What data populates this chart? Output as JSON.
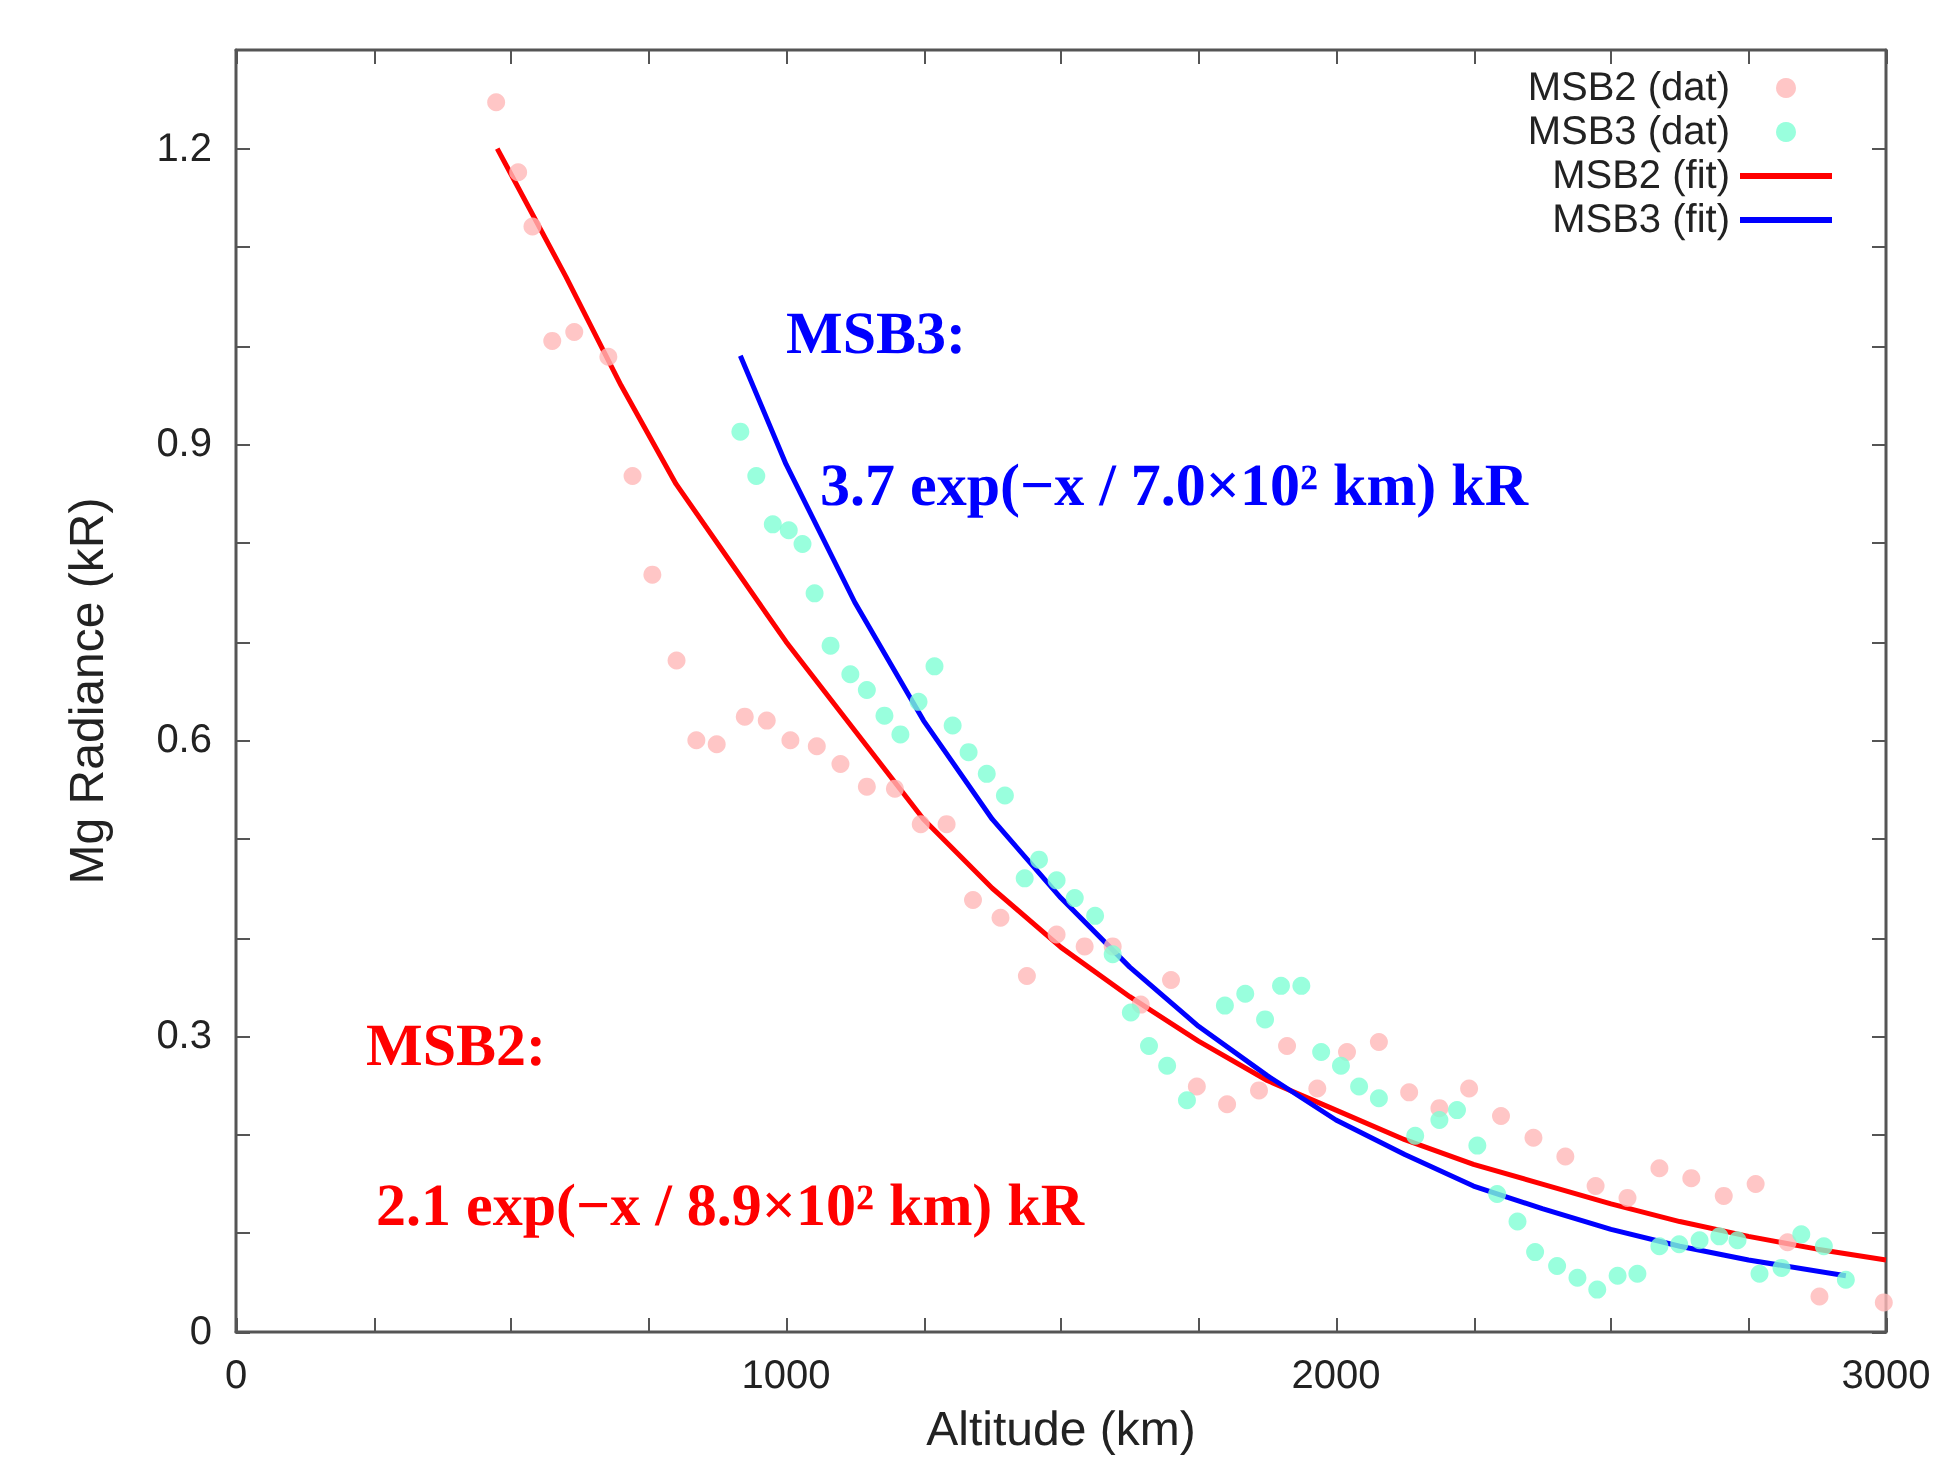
{
  "chart_data": {
    "type": "scatter",
    "xlabel": "Altitude (km)",
    "ylabel": "Mg Radiance (kR)",
    "xlim": [
      0,
      3000
    ],
    "ylim": [
      0,
      1.3
    ],
    "xticks": [
      0,
      {
        "value": 250,
        "label": null
      },
      {
        "value": 500,
        "label": null
      },
      {
        "value": 750,
        "label": null
      },
      1000,
      {
        "value": 1250,
        "label": null
      },
      {
        "value": 1500,
        "label": null
      },
      {
        "value": 1750,
        "label": null
      },
      2000,
      {
        "value": 2250,
        "label": null
      },
      {
        "value": 2500,
        "label": null
      },
      {
        "value": 2750,
        "label": null
      },
      3000
    ],
    "yticks": [
      0,
      {
        "value": 0.1,
        "label": null
      },
      {
        "value": 0.2,
        "label": null
      },
      0.3,
      {
        "value": 0.4,
        "label": null
      },
      {
        "value": 0.5,
        "label": null
      },
      0.6,
      {
        "value": 0.7,
        "label": null
      },
      {
        "value": 0.8,
        "label": null
      },
      0.9,
      {
        "value": 1,
        "label": null
      },
      {
        "value": 1.1,
        "label": null
      },
      1.2
    ],
    "legend": "top right",
    "grid": false,
    "series": [
      {
        "name": "MSB2 (dat)",
        "color": "#ffb8b8",
        "x": [
          473,
          513,
          539,
          575,
          615,
          677,
          721,
          757,
          801,
          837,
          874,
          925,
          965,
          1008,
          1056,
          1099,
          1147,
          1198,
          1245,
          1292,
          1340,
          1390,
          1438,
          1492,
          1543,
          1594,
          1645,
          1700,
          1747,
          1802,
          1860,
          1911,
          1966,
          2020,
          2078,
          2133,
          2188,
          2242,
          2300,
          2359,
          2417,
          2472,
          2530,
          2588,
          2646,
          2705,
          2763,
          2821,
          2879,
          2996
        ],
        "values": [
          1.247,
          1.176,
          1.121,
          1.005,
          1.014,
          0.989,
          0.868,
          0.768,
          0.681,
          0.6,
          0.596,
          0.624,
          0.62,
          0.6,
          0.594,
          0.576,
          0.553,
          0.551,
          0.515,
          0.515,
          0.438,
          0.42,
          0.361,
          0.403,
          0.391,
          0.391,
          0.332,
          0.357,
          0.249,
          0.231,
          0.245,
          0.29,
          0.247,
          0.284,
          0.294,
          0.243,
          0.227,
          0.247,
          0.219,
          0.197,
          0.178,
          0.148,
          0.136,
          0.166,
          0.156,
          0.138,
          0.15,
          0.091,
          0.036,
          0.03
        ]
      },
      {
        "name": "MSB3 (dat)",
        "color": "#7fffd4",
        "x": [
          917,
          946,
          976,
          1005,
          1030,
          1052,
          1081,
          1117,
          1147,
          1179,
          1208,
          1241,
          1270,
          1303,
          1332,
          1365,
          1398,
          1434,
          1460,
          1492,
          1525,
          1562,
          1594,
          1627,
          1660,
          1693,
          1729,
          1798,
          1835,
          1871,
          1900,
          1937,
          1973,
          2009,
          2042,
          2078,
          2144,
          2188,
          2220,
          2257,
          2293,
          2330,
          2362,
          2402,
          2439,
          2475,
          2512,
          2548,
          2588,
          2624,
          2661,
          2697,
          2730,
          2770,
          2810,
          2846,
          2887,
          2927
        ],
        "values": [
          0.913,
          0.868,
          0.819,
          0.813,
          0.799,
          0.749,
          0.696,
          0.667,
          0.651,
          0.625,
          0.606,
          0.639,
          0.675,
          0.615,
          0.588,
          0.566,
          0.544,
          0.46,
          0.479,
          0.458,
          0.44,
          0.422,
          0.383,
          0.324,
          0.29,
          0.27,
          0.235,
          0.331,
          0.343,
          0.317,
          0.351,
          0.351,
          0.284,
          0.27,
          0.249,
          0.237,
          0.199,
          0.215,
          0.225,
          0.189,
          0.14,
          0.112,
          0.081,
          0.067,
          0.055,
          0.043,
          0.057,
          0.059,
          0.087,
          0.089,
          0.093,
          0.097,
          0.093,
          0.059,
          0.065,
          0.099,
          0.087,
          0.053
        ]
      },
      {
        "name": "MSB2 (fit)",
        "type": "line",
        "color": "#ff0000",
        "x": [
          475,
          600,
          700,
          800,
          900,
          1000,
          1125,
          1250,
          1375,
          1500,
          1625,
          1750,
          1875,
          2000,
          2125,
          2250,
          2375,
          2500,
          2625,
          2750,
          2875,
          3000
        ],
        "values": [
          1.2,
          1.07,
          0.96,
          0.86,
          0.78,
          0.7,
          0.61,
          0.52,
          0.45,
          0.39,
          0.34,
          0.295,
          0.255,
          0.225,
          0.195,
          0.17,
          0.15,
          0.13,
          0.112,
          0.097,
          0.084,
          0.073
        ]
      },
      {
        "name": "MSB3 (fit)",
        "type": "line",
        "color": "#0000ff",
        "x": [
          917,
          1000,
          1125,
          1250,
          1375,
          1500,
          1625,
          1750,
          1875,
          2000,
          2125,
          2250,
          2375,
          2500,
          2625,
          2750,
          2927
        ],
        "values": [
          0.99,
          0.88,
          0.74,
          0.62,
          0.52,
          0.44,
          0.37,
          0.31,
          0.26,
          0.215,
          0.18,
          0.148,
          0.125,
          0.104,
          0.087,
          0.073,
          0.057
        ]
      }
    ],
    "annotations": [
      "MSB3:",
      "3.7 exp(−x / 7.0×10² km) kR",
      "MSB2:",
      "2.1 exp(−x / 8.9×10² km) kR"
    ]
  }
}
